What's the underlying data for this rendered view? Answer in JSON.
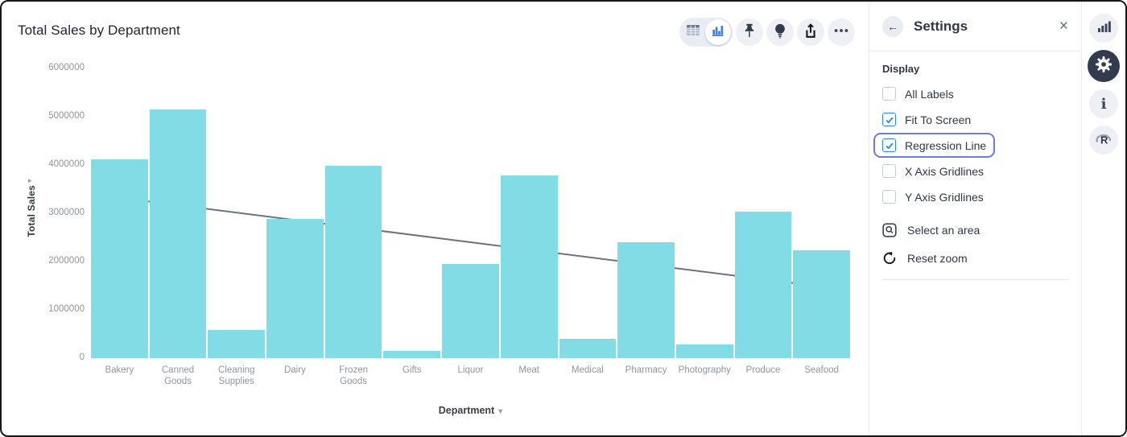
{
  "header": {
    "title": "Total Sales by Department"
  },
  "toolbar": {
    "view_toggle": [
      {
        "icon": "table-view-icon",
        "active": false
      },
      {
        "icon": "bar-chart-view-icon",
        "active": true
      }
    ],
    "buttons": [
      {
        "icon": "pin-icon"
      },
      {
        "icon": "lightbulb-icon"
      },
      {
        "icon": "share-icon"
      },
      {
        "icon": "more-options-icon"
      }
    ]
  },
  "settings_panel": {
    "title": "Settings",
    "section_heading": "Display",
    "options": [
      {
        "label": "All Labels",
        "checked": false,
        "highlighted": false
      },
      {
        "label": "Fit To Screen",
        "checked": true,
        "highlighted": false
      },
      {
        "label": "Regression Line",
        "checked": true,
        "highlighted": true
      },
      {
        "label": "X Axis Gridlines",
        "checked": false,
        "highlighted": false
      },
      {
        "label": "Y Axis Gridlines",
        "checked": false,
        "highlighted": false
      }
    ],
    "actions": [
      {
        "label": "Select an area",
        "icon": "select-area-icon"
      },
      {
        "label": "Reset zoom",
        "icon": "reset-zoom-icon"
      }
    ]
  },
  "icon_rail": [
    {
      "icon": "bar-chart-icon",
      "active": false
    },
    {
      "icon": "gear-icon",
      "active": true
    },
    {
      "icon": "info-icon",
      "active": false
    },
    {
      "icon": "r-logo-icon",
      "active": false
    }
  ],
  "chart_data": {
    "type": "bar",
    "title": "Total Sales by Department",
    "xlabel": "Department",
    "ylabel": "Total Sales",
    "categories": [
      "Bakery",
      "Canned Goods",
      "Cleaning Supplies",
      "Dairy",
      "Frozen Goods",
      "Gifts",
      "Liquor",
      "Meat",
      "Medical",
      "Pharmacy",
      "Photography",
      "Produce",
      "Seafood"
    ],
    "values": [
      4120000,
      5150000,
      590000,
      2890000,
      3980000,
      150000,
      1950000,
      3790000,
      400000,
      2400000,
      290000,
      3030000,
      2230000
    ],
    "ylim": [
      0,
      6000000
    ],
    "y_ticks": [
      0,
      1000000,
      2000000,
      3000000,
      4000000,
      5000000,
      6000000
    ],
    "grid": "off",
    "legend": "none",
    "regression_line": {
      "start_value": 3320000,
      "end_value": 1480000
    }
  },
  "colors": {
    "bar": "#82dce5",
    "regression_line": "#6b7280",
    "accent_blue": "#2d86f3",
    "highlight_ring": "#6c7be0",
    "active_rail_bg": "#323c4e"
  }
}
